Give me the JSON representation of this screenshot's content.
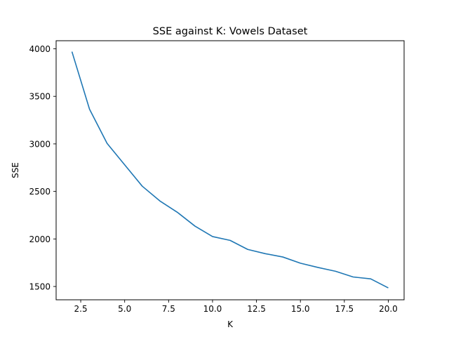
{
  "chart_data": {
    "type": "line",
    "title": "SSE against K: Vowels Dataset",
    "xlabel": "K",
    "ylabel": "SSE",
    "xlim": [
      1.1,
      20.9
    ],
    "ylim": [
      1360,
      4085
    ],
    "xticks": [
      2.5,
      5.0,
      7.5,
      10.0,
      12.5,
      15.0,
      17.5,
      20.0
    ],
    "xtick_labels": [
      "2.5",
      "5.0",
      "7.5",
      "10.0",
      "12.5",
      "15.0",
      "17.5",
      "20.0"
    ],
    "yticks": [
      1500,
      2000,
      2500,
      3000,
      3500,
      4000
    ],
    "ytick_labels": [
      "1500",
      "2000",
      "2500",
      "3000",
      "3500",
      "4000"
    ],
    "grid": false,
    "line_color": "#1f77b4",
    "series": [
      {
        "x": [
          2,
          3,
          4,
          5,
          6,
          7,
          8,
          9,
          10,
          11,
          12,
          13,
          14,
          15,
          16,
          17,
          18,
          19,
          20
        ],
        "values": [
          3970,
          3365,
          3005,
          2780,
          2555,
          2400,
          2280,
          2135,
          2025,
          1985,
          1890,
          1845,
          1810,
          1745,
          1700,
          1660,
          1600,
          1580,
          1485
        ]
      }
    ]
  }
}
